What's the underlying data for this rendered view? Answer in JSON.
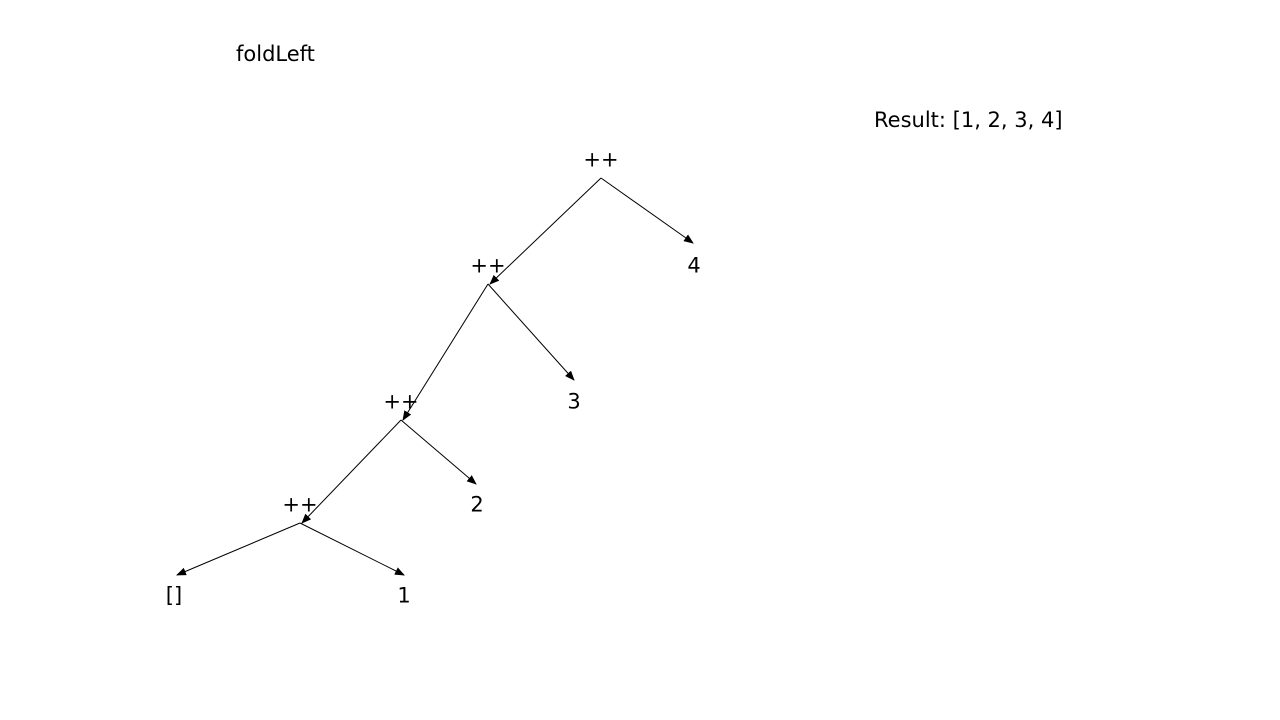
{
  "title": "foldLeft",
  "result": "Result: [1, 2, 3, 4]",
  "nodes": {
    "op1": "++",
    "op2": "++",
    "op3": "++",
    "op4": "++",
    "leaf_empty": "[]",
    "leaf_1": "1",
    "leaf_2": "2",
    "leaf_3": "3",
    "leaf_4": "4"
  },
  "edges": [
    [
      "op1",
      "op2"
    ],
    [
      "op1",
      "leaf_4"
    ],
    [
      "op2",
      "op3"
    ],
    [
      "op2",
      "leaf_3"
    ],
    [
      "op3",
      "op4"
    ],
    [
      "op3",
      "leaf_2"
    ],
    [
      "op4",
      "leaf_empty"
    ],
    [
      "op4",
      "leaf_1"
    ]
  ],
  "colors": {
    "line": "#000000",
    "text": "#000000"
  }
}
